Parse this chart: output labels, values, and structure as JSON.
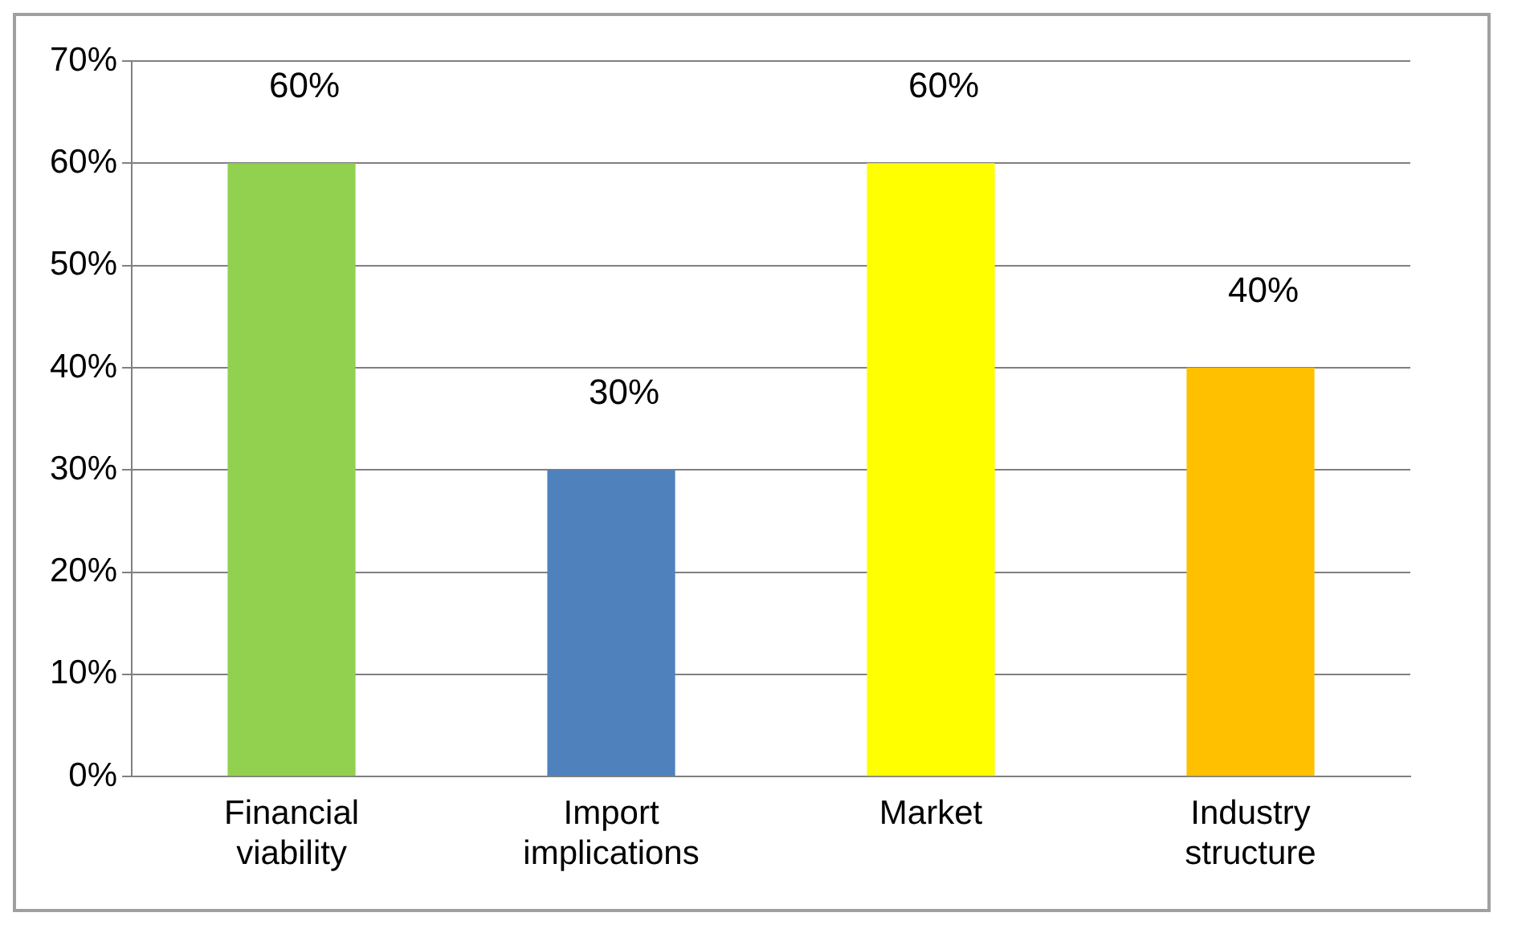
{
  "chart_data": {
    "type": "bar",
    "categories": [
      "Financial viability",
      "Import implications",
      "Market",
      "Industry structure"
    ],
    "values": [
      60,
      30,
      60,
      40
    ],
    "colors": [
      "#92d050",
      "#4f81bd",
      "#ffff00",
      "#ffc000"
    ],
    "value_labels": [
      "60%",
      "30%",
      "60%",
      "40%"
    ],
    "ylim": [
      0,
      70
    ],
    "yticks": [
      {
        "value": 0,
        "label": "0%"
      },
      {
        "value": 10,
        "label": "10%"
      },
      {
        "value": 20,
        "label": "20%"
      },
      {
        "value": 30,
        "label": "30%"
      },
      {
        "value": 40,
        "label": "40%"
      },
      {
        "value": 50,
        "label": "50%"
      },
      {
        "value": 60,
        "label": "60%"
      },
      {
        "value": 70,
        "label": "70%"
      }
    ],
    "grid": "y",
    "legend": false
  }
}
